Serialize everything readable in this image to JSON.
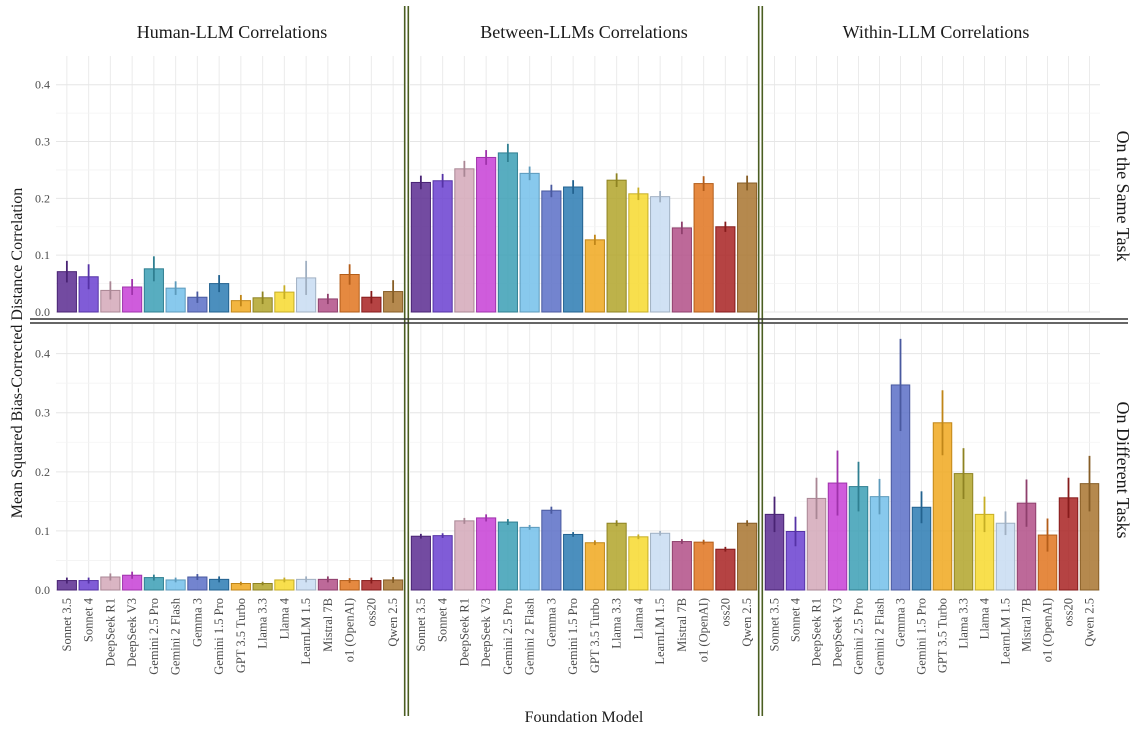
{
  "chart_data": {
    "type": "bar",
    "ylabel": "Mean Squared Bias-Corrected Distance Correlation",
    "xlabel": "Foundation Model",
    "ylim": [
      0,
      0.44
    ],
    "yticks": [
      0.0,
      0.1,
      0.2,
      0.3,
      0.4
    ],
    "grid": true,
    "legend": "none",
    "columns": [
      "Human-LLM Correlations",
      "Between-LLMs Correlations",
      "Within-LLM Correlations"
    ],
    "rows": [
      "On the Same Task",
      "On Different Tasks"
    ],
    "categories": [
      "Sonnet 3.5",
      "Sonnet 4",
      "DeepSeek R1",
      "DeepSeek V3",
      "Gemini 2.5 Pro",
      "Gemini 2 Flash",
      "Gemma 3",
      "Gemini 1.5 Pro",
      "GPT 3.5 Turbo",
      "Llama 3.3",
      "Llama 4",
      "LearnLM 1.5",
      "Mistral 7B",
      "o1 (OpenAI)",
      "oss20",
      "Qwen 2.5"
    ],
    "colors": [
      "#5b2c91",
      "#6a3fd0",
      "#d3a8b9",
      "#c73fd6",
      "#3b9fb5",
      "#73c0ea",
      "#5b6fc7",
      "#2b7bb3",
      "#f0a81e",
      "#b2a42a",
      "#f7d92e",
      "#c8dcf2",
      "#b24f87",
      "#e0741f",
      "#a82222",
      "#a8742f"
    ],
    "panels": [
      {
        "column": "Human-LLM Correlations",
        "row": "On the Same Task",
        "values": [
          0.071,
          0.062,
          0.038,
          0.044,
          0.076,
          0.042,
          0.026,
          0.05,
          0.02,
          0.025,
          0.035,
          0.06,
          0.023,
          0.066,
          0.026,
          0.036
        ],
        "errors": [
          0.019,
          0.022,
          0.016,
          0.014,
          0.022,
          0.012,
          0.01,
          0.015,
          0.01,
          0.011,
          0.012,
          0.03,
          0.009,
          0.018,
          0.011,
          0.02
        ]
      },
      {
        "column": "Between-LLMs Correlations",
        "row": "On the Same Task",
        "values": [
          0.228,
          0.231,
          0.252,
          0.272,
          0.28,
          0.244,
          0.213,
          0.22,
          0.127,
          0.232,
          0.208,
          0.203,
          0.148,
          0.226,
          0.15,
          0.227
        ],
        "errors": [
          0.012,
          0.012,
          0.014,
          0.013,
          0.016,
          0.012,
          0.011,
          0.012,
          0.009,
          0.012,
          0.011,
          0.01,
          0.011,
          0.013,
          0.009,
          0.013
        ]
      },
      {
        "column": "Within-LLM Correlations",
        "row": "On the Same Task",
        "values": [],
        "errors": []
      },
      {
        "column": "Human-LLM Correlations",
        "row": "On Different Tasks",
        "values": [
          0.016,
          0.016,
          0.022,
          0.025,
          0.021,
          0.017,
          0.022,
          0.018,
          0.011,
          0.011,
          0.017,
          0.018,
          0.018,
          0.016,
          0.016,
          0.017
        ],
        "errors": [
          0.005,
          0.005,
          0.006,
          0.006,
          0.005,
          0.004,
          0.005,
          0.005,
          0.003,
          0.003,
          0.004,
          0.005,
          0.005,
          0.004,
          0.005,
          0.005
        ]
      },
      {
        "column": "Between-LLMs Correlations",
        "row": "On Different Tasks",
        "values": [
          0.091,
          0.092,
          0.117,
          0.122,
          0.115,
          0.106,
          0.135,
          0.094,
          0.08,
          0.113,
          0.09,
          0.096,
          0.082,
          0.081,
          0.069,
          0.113
        ],
        "errors": [
          0.004,
          0.004,
          0.005,
          0.006,
          0.005,
          0.004,
          0.006,
          0.004,
          0.004,
          0.005,
          0.004,
          0.004,
          0.004,
          0.004,
          0.004,
          0.005
        ]
      },
      {
        "column": "Within-LLM Correlations",
        "row": "On Different Tasks",
        "values": [
          0.128,
          0.099,
          0.155,
          0.181,
          0.175,
          0.158,
          0.347,
          0.14,
          0.283,
          0.197,
          0.128,
          0.113,
          0.147,
          0.093,
          0.156,
          0.18
        ],
        "errors": [
          0.03,
          0.025,
          0.035,
          0.055,
          0.042,
          0.03,
          0.078,
          0.027,
          0.055,
          0.043,
          0.03,
          0.02,
          0.04,
          0.028,
          0.034,
          0.047
        ]
      }
    ]
  }
}
